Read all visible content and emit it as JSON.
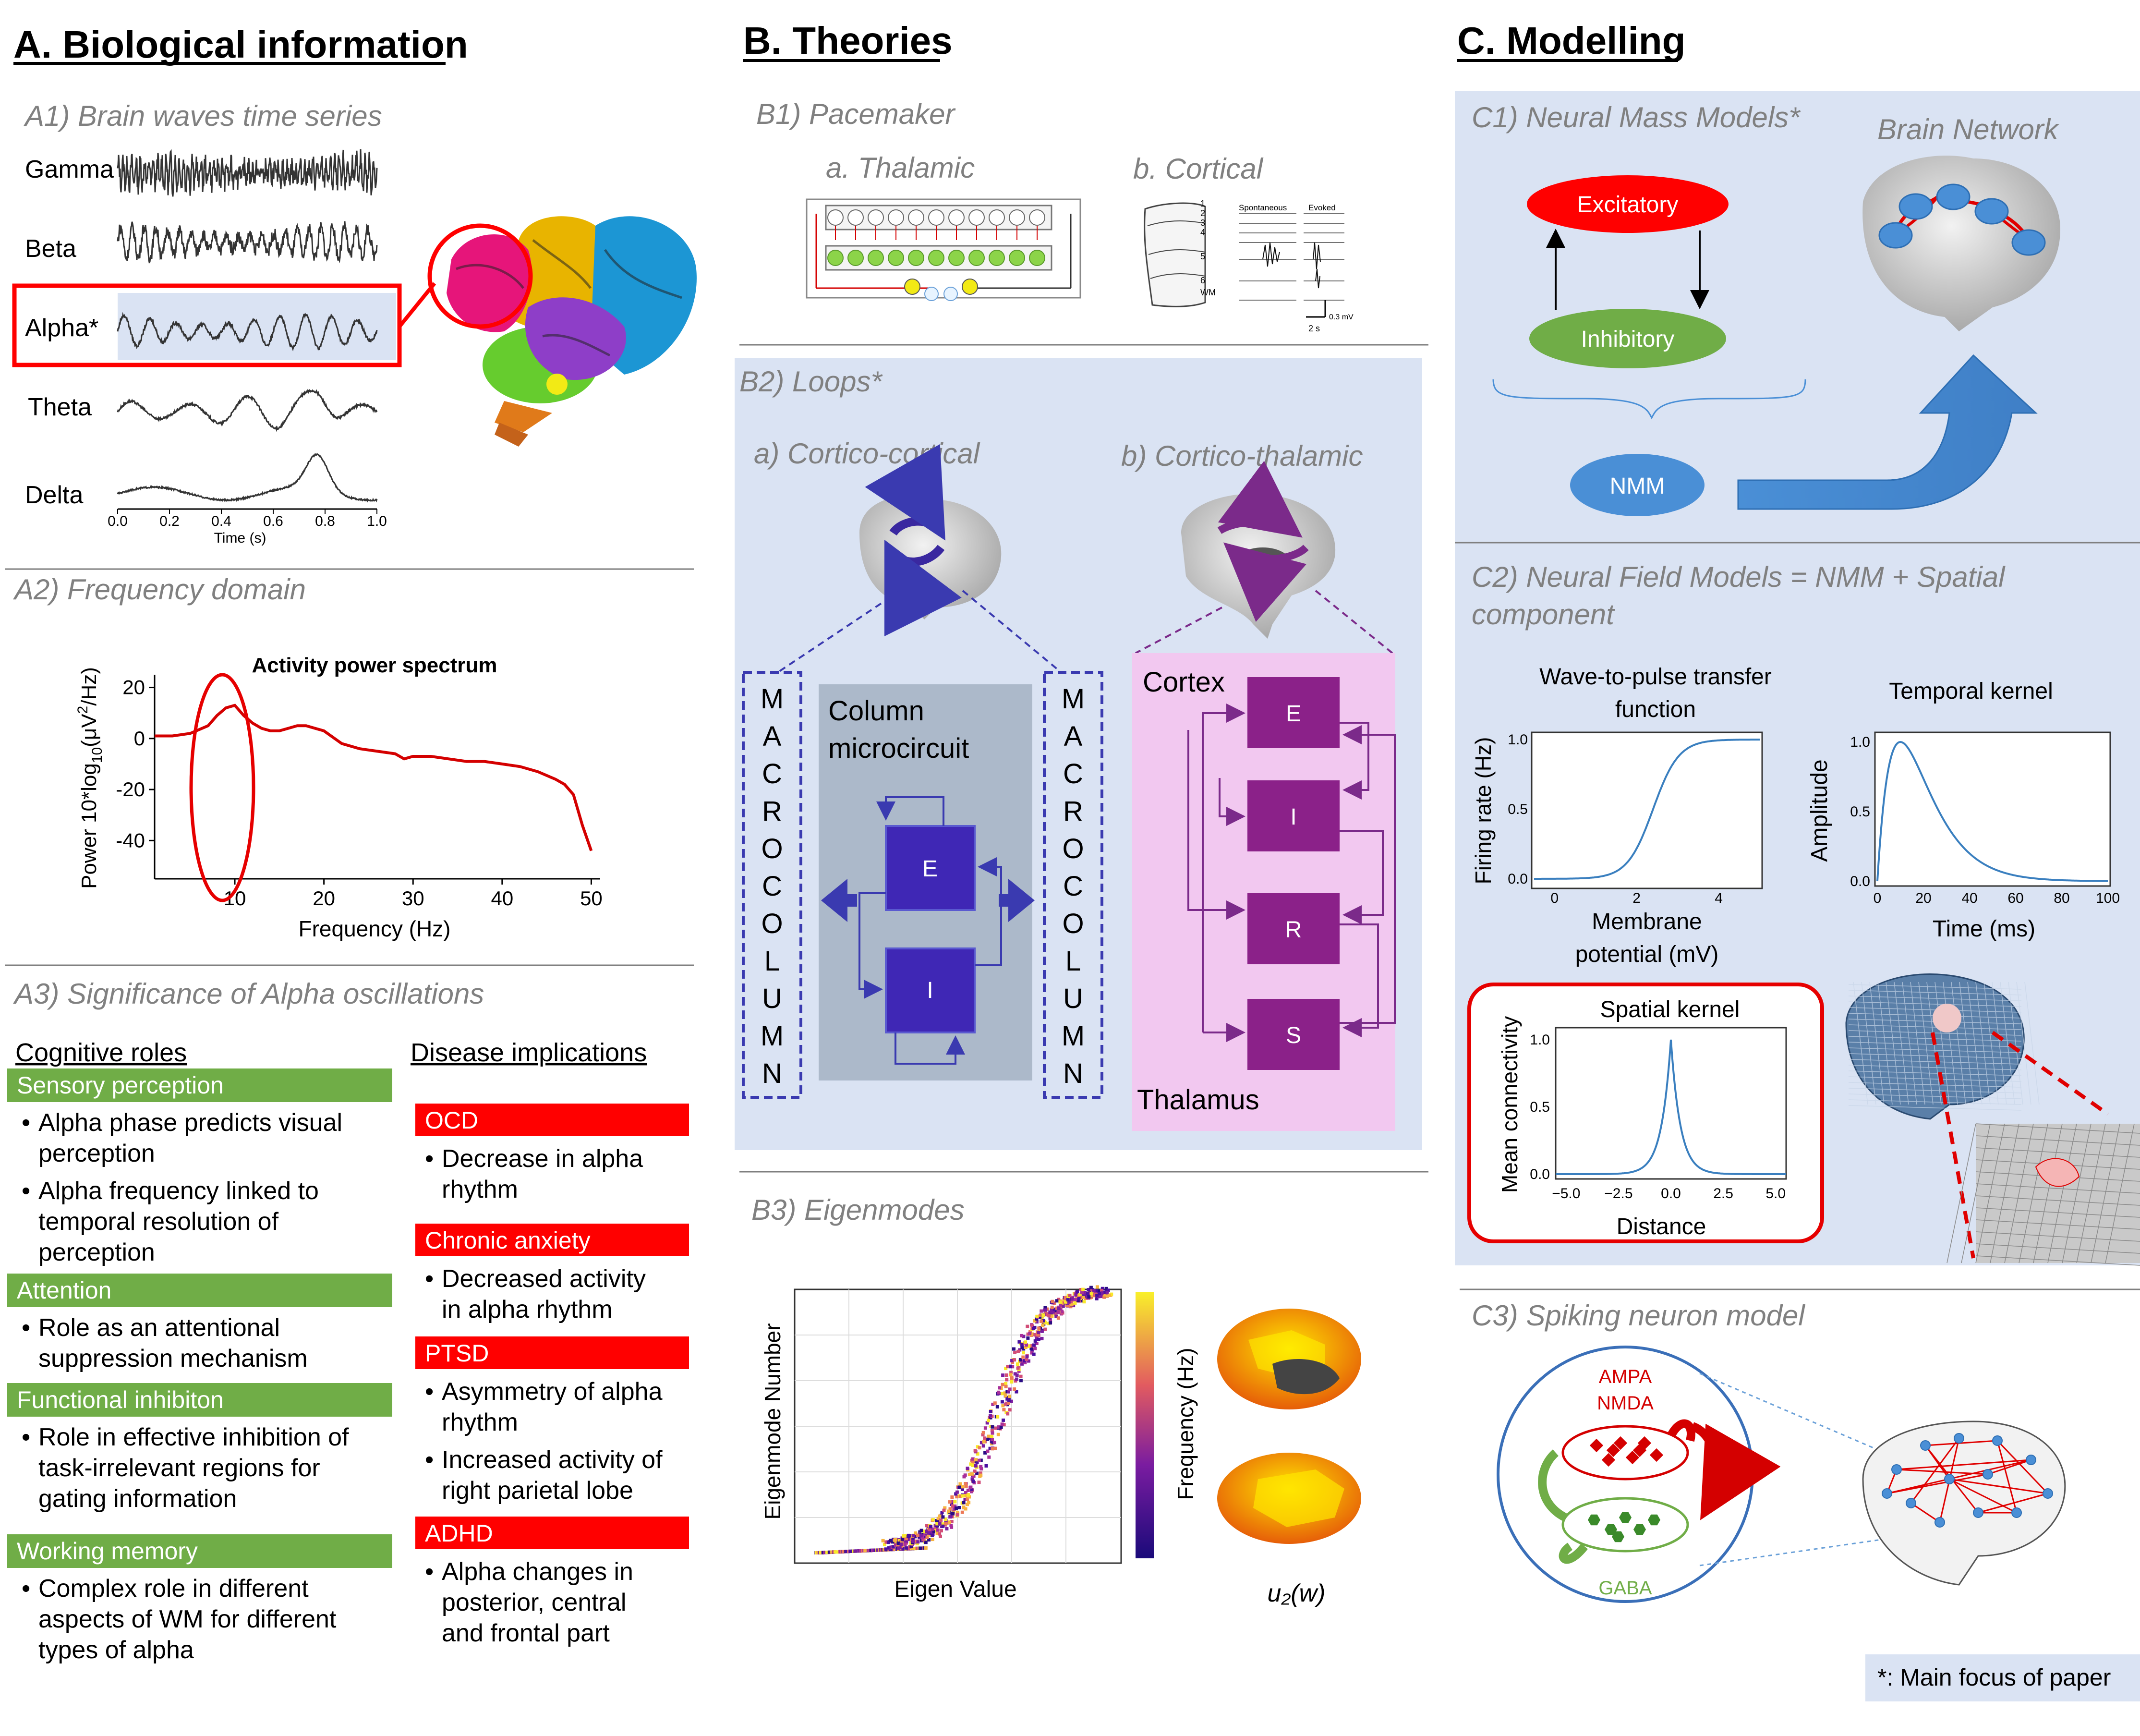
{
  "headers": {
    "A": "A. Biological information",
    "B": "B. Theories",
    "C": "C. Modelling"
  },
  "A1": {
    "title": "A1) Brain waves time series",
    "bands": [
      "Gamma",
      "Beta",
      "Alpha*",
      "Theta",
      "Delta"
    ],
    "xticks": [
      "0.0",
      "0.2",
      "0.4",
      "0.6",
      "0.8",
      "1.0"
    ],
    "xlabel": "Time (s)"
  },
  "A2": {
    "title": "A2) Frequency domain",
    "chart_data": {
      "type": "line",
      "title": "Activity power spectrum",
      "xlabel": "Frequency (Hz)",
      "ylabel": "Power 10*log10(µV²/Hz)",
      "ylabel_parts": {
        "a": "Power 10*log",
        "sub": "10",
        "b": "(μV",
        "sup": "2",
        "c": "/Hz)"
      },
      "xticks": [
        "10",
        "20",
        "30",
        "40",
        "50"
      ],
      "yticks": [
        "20",
        "0",
        "-20",
        "-40"
      ],
      "xlim": [
        1,
        51
      ],
      "ylim": [
        -55,
        25
      ],
      "x": [
        1,
        3,
        5,
        7,
        8,
        9,
        10,
        11,
        12,
        13,
        14,
        15,
        16,
        17,
        18,
        19,
        20,
        22,
        24,
        26,
        28,
        29,
        30,
        32,
        34,
        36,
        38,
        40,
        42,
        44,
        46,
        47,
        48,
        49,
        50
      ],
      "y": [
        1,
        1,
        2,
        5,
        9,
        12,
        13,
        9,
        6,
        4,
        3,
        3,
        4,
        5,
        5,
        4,
        3,
        -2,
        -4,
        -5,
        -6,
        -8,
        -7,
        -7,
        -8,
        -9,
        -9,
        -10,
        -11,
        -13,
        -16,
        -18,
        -22,
        -34,
        -44
      ],
      "color": "#d40000"
    }
  },
  "A3": {
    "title": "A3) Significance of Alpha oscillations",
    "cog_header": "Cognitive roles",
    "dis_header": "Disease implications",
    "cognitive": [
      {
        "title": "Sensory perception",
        "bullets": [
          [
            "Alpha phase predicts visual",
            "perception"
          ],
          [
            "Alpha frequency linked to",
            "temporal resolution of",
            "perception"
          ]
        ]
      },
      {
        "title": "Attention",
        "bullets": [
          [
            "Role as an attentional",
            "suppression mechanism"
          ]
        ]
      },
      {
        "title": "Functional inhibiton",
        "bullets": [
          [
            "Role in effective inhibition of",
            "task-irrelevant regions for",
            "gating information"
          ]
        ]
      },
      {
        "title": "Working memory",
        "bullets": [
          [
            "Complex role in different",
            "aspects of WM for different",
            "types of alpha"
          ]
        ]
      }
    ],
    "diseases": [
      {
        "title": "OCD",
        "bullets": [
          [
            "Decrease in alpha",
            "rhythm"
          ]
        ]
      },
      {
        "title": "Chronic anxiety",
        "bullets": [
          [
            "Decreased activity",
            "in alpha rhythm"
          ]
        ]
      },
      {
        "title": "PTSD",
        "bullets": [
          [
            "Asymmetry of alpha",
            "rhythm"
          ],
          [
            "Increased activity of",
            "right parietal lobe"
          ]
        ]
      },
      {
        "title": "ADHD",
        "bullets": [
          [
            "Alpha changes in",
            "posterior, central",
            "and frontal part"
          ]
        ]
      }
    ],
    "colors": {
      "green": "#70ad47",
      "red": "#ff0000"
    }
  },
  "B1": {
    "title": "B1) Pacemaker",
    "a": "a. Thalamic",
    "b": "b. Cortical",
    "trace_labels": [
      "Spontaneous",
      "Evoked"
    ],
    "layers": [
      "1",
      "2",
      "3",
      "4",
      "5",
      "6",
      "WM"
    ],
    "scale": [
      "2 s",
      "0.3 mV"
    ]
  },
  "B2": {
    "title": "B2) Loops*",
    "a": "a) Cortico-cortical",
    "b": "b) Cortico-thalamic",
    "macro_letters": [
      "M",
      "A",
      "C",
      "R",
      "O",
      "C",
      "O",
      "L",
      "U",
      "M",
      "N"
    ],
    "column_title": [
      "Column",
      "microcircuit"
    ],
    "E": "E",
    "I": "I",
    "cortex": "Cortex",
    "thalamus": "Thalamus",
    "ct_nodes": [
      "E",
      "I",
      "R",
      "S"
    ]
  },
  "B3": {
    "title": "B3) Eigenmodes",
    "xlabel": "Eigen Value",
    "ylabel": "Eigenmode Number",
    "cbar_label": "Frequency (Hz)",
    "brain_label": "u₂(w)"
  },
  "C1": {
    "title": "C1) Neural Mass Models*",
    "excitatory": "Excitatory",
    "inhibitory": "Inhibitory",
    "nmm": "NMM",
    "network": "Brain Network"
  },
  "C2": {
    "title_lines": [
      "C2) Neural Field Models = NMM + Spatial",
      "component"
    ],
    "wave": {
      "title": [
        "Wave-to-pulse transfer",
        "function"
      ],
      "ylabel": "Firing rate (Hz)",
      "xlabel": [
        "Membrane",
        "potential (mV)"
      ],
      "xticks": [
        "0",
        "2",
        "4"
      ],
      "yticks": [
        "0.0",
        "0.5",
        "1.0"
      ]
    },
    "temporal": {
      "title": "Temporal kernel",
      "ylabel": "Amplitude",
      "xlabel": "Time (ms)",
      "xticks": [
        "0",
        "20",
        "40",
        "60",
        "80",
        "100"
      ],
      "yticks": [
        "0.0",
        "0.5",
        "1.0"
      ]
    },
    "spatial": {
      "title": "Spatial kernel",
      "ylabel": "Mean connectivity",
      "xlabel": "Distance",
      "xticks": [
        "−5.0",
        "−2.5",
        "0.0",
        "2.5",
        "5.0"
      ],
      "yticks": [
        "0.0",
        "0.5",
        "1.0"
      ]
    }
  },
  "C3": {
    "title": "C3) Spiking neuron model",
    "ampa": "AMPA",
    "nmda": "NMDA",
    "gaba": "GABA"
  },
  "footnote": "*: Main focus of paper"
}
